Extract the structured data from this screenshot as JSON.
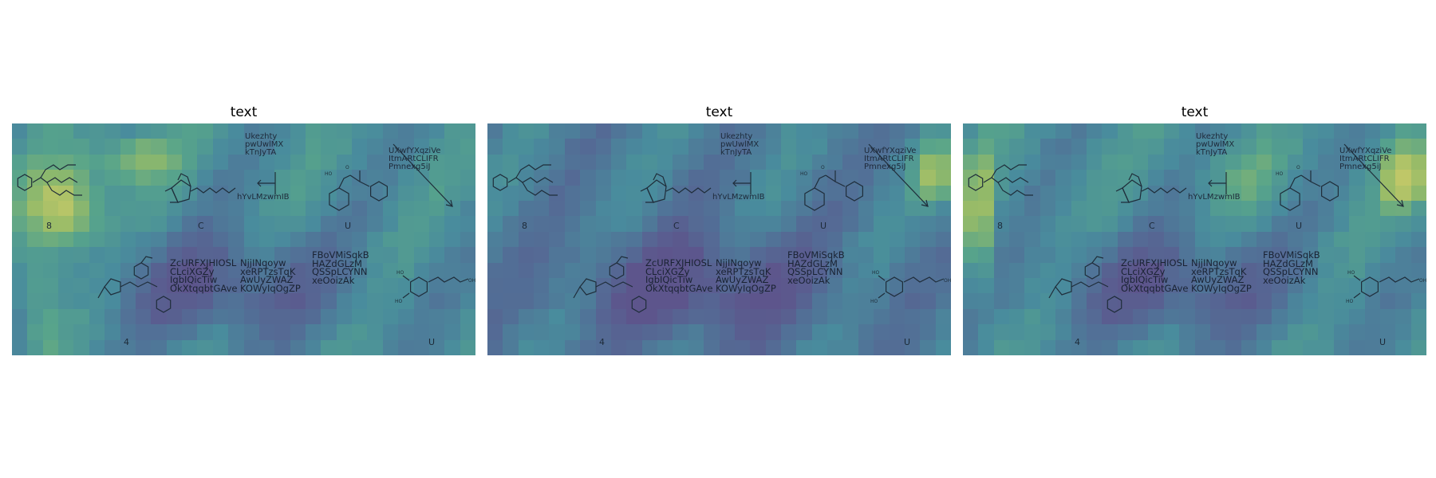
{
  "panels": [
    {
      "title": "text",
      "heat_variant": "left-hot",
      "labels": {
        "r1a": "8",
        "r1b": "C",
        "r1c": "U",
        "r2a": "4",
        "r2b": "U"
      },
      "snippets": {
        "top_mid": [
          "Ukezhty",
          "pwUwlMX",
          "kTnJyTA"
        ],
        "arrow_label": "hYvLMzwmIB",
        "top_right": [
          "UXwfYXqziVe",
          "ItmARtCLIFR",
          "Pmnexg5iJ"
        ],
        "block1": [
          "ZcURFXJHIOSL",
          "CLciXGZy",
          "IgbIQicTiw",
          "OkXtqqbtGAve"
        ],
        "block2": [
          "NjjINqoyw",
          "xeRPTzsTqK",
          "AwUyZWAZ",
          "KOWyIqOgZP"
        ],
        "block3": [
          "FBoVMiSqkB",
          "HAZdGLzM",
          "QSSpLCYNN",
          "xeOoizAk"
        ]
      }
    },
    {
      "title": "text",
      "heat_variant": "cool",
      "labels": {
        "r1a": "8",
        "r1b": "C",
        "r1c": "U",
        "r2a": "4",
        "r2b": "U"
      },
      "snippets": {
        "top_mid": [
          "Ukezhty",
          "pwUwlMX",
          "kTnJyTA"
        ],
        "arrow_label": "hYvLMzwmIB",
        "top_right": [
          "UXwfYXqziVe",
          "ItmARtCLIFR",
          "Pmnexg5iJ"
        ],
        "block1": [
          "ZcURFXJHIOSL",
          "CLciXGZy",
          "IgbIQicTiw",
          "OkXtqqbtGAve"
        ],
        "block2": [
          "NjjINqoyw",
          "xeRPTzsTqK",
          "AwUyZWAZ",
          "KOWyIqOgZP"
        ],
        "block3": [
          "FBoVMiSqkB",
          "HAZdGLzM",
          "QSSpLCYNN",
          "xeOoizAk"
        ]
      }
    },
    {
      "title": "text",
      "heat_variant": "right-hot",
      "labels": {
        "r1a": "8",
        "r1b": "C",
        "r1c": "U",
        "r2a": "4",
        "r2b": "U"
      },
      "snippets": {
        "top_mid": [
          "Ukezhty",
          "pwUwlMX",
          "kTnJyTA"
        ],
        "arrow_label": "hYvLMzwmIB",
        "top_right": [
          "UXwfYXqziVe",
          "ItmARtCLIFR",
          "Pmnexg5iJ"
        ],
        "block1": [
          "ZcURFXJHIOSL",
          "CLciXGZy",
          "IgbIQicTiw",
          "OkXtqqbtGAve"
        ],
        "block2": [
          "NjjINqoyw",
          "xeRPTzsTqK",
          "AwUyZWAZ",
          "KOWyIqOgZP"
        ],
        "block3": [
          "FBoVMiSqkB",
          "HAZdGLzM",
          "QSSpLCYNN",
          "xeOoizAk"
        ]
      }
    }
  ],
  "colors": {
    "purple": "#6f4e8f",
    "teal": "#4fa6a0",
    "green": "#7cc46a",
    "yellow": "#f4ea5c",
    "ink": "#1d2a38"
  }
}
